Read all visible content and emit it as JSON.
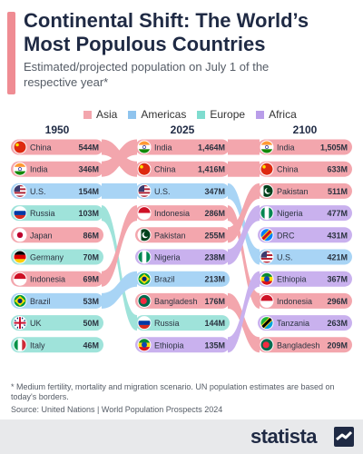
{
  "title": "Continental Shift: The World’s Most Populous Countries",
  "subtitle": "Estimated/projected population on July 1 of the respective year*",
  "footnote": "* Medium fertility, mortality and migration scenario. UN population estimates are based on today's borders.",
  "source": "Source: United Nations | World Population Prospects 2024",
  "brand": "statista",
  "colors": {
    "Asia": "#f3a6ad",
    "Americas": "#a8d4f5",
    "Europe": "#9fe3da",
    "Africa": "#c9b1ee"
  },
  "chart_data": {
    "type": "bump",
    "years": [
      "1950",
      "2025",
      "2100"
    ],
    "legend": [
      "Asia",
      "Americas",
      "Europe",
      "Africa"
    ],
    "columns": [
      {
        "year": "1950",
        "rows": [
          {
            "country": "China",
            "label": "544M",
            "value": 544,
            "continent": "Asia",
            "flag": "china"
          },
          {
            "country": "India",
            "label": "346M",
            "value": 346,
            "continent": "Asia",
            "flag": "india"
          },
          {
            "country": "U.S.",
            "label": "154M",
            "value": 154,
            "continent": "Americas",
            "flag": "us"
          },
          {
            "country": "Russia",
            "label": "103M",
            "value": 103,
            "continent": "Europe",
            "flag": "russia"
          },
          {
            "country": "Japan",
            "label": "86M",
            "value": 86,
            "continent": "Asia",
            "flag": "japan"
          },
          {
            "country": "Germany",
            "label": "70M",
            "value": 70,
            "continent": "Europe",
            "flag": "germany"
          },
          {
            "country": "Indonesia",
            "label": "69M",
            "value": 69,
            "continent": "Asia",
            "flag": "indonesia"
          },
          {
            "country": "Brazil",
            "label": "53M",
            "value": 53,
            "continent": "Americas",
            "flag": "brazil"
          },
          {
            "country": "UK",
            "label": "50M",
            "value": 50,
            "continent": "Europe",
            "flag": "uk"
          },
          {
            "country": "Italy",
            "label": "46M",
            "value": 46,
            "continent": "Europe",
            "flag": "italy"
          }
        ]
      },
      {
        "year": "2025",
        "rows": [
          {
            "country": "India",
            "label": "1,464M",
            "value": 1464,
            "continent": "Asia",
            "flag": "india"
          },
          {
            "country": "China",
            "label": "1,416M",
            "value": 1416,
            "continent": "Asia",
            "flag": "china"
          },
          {
            "country": "U.S.",
            "label": "347M",
            "value": 347,
            "continent": "Americas",
            "flag": "us"
          },
          {
            "country": "Indonesia",
            "label": "286M",
            "value": 286,
            "continent": "Asia",
            "flag": "indonesia"
          },
          {
            "country": "Pakistan",
            "label": "255M",
            "value": 255,
            "continent": "Asia",
            "flag": "pakistan"
          },
          {
            "country": "Nigeria",
            "label": "238M",
            "value": 238,
            "continent": "Africa",
            "flag": "nigeria"
          },
          {
            "country": "Brazil",
            "label": "213M",
            "value": 213,
            "continent": "Americas",
            "flag": "brazil"
          },
          {
            "country": "Bangladesh",
            "label": "176M",
            "value": 176,
            "continent": "Asia",
            "flag": "bangladesh"
          },
          {
            "country": "Russia",
            "label": "144M",
            "value": 144,
            "continent": "Europe",
            "flag": "russia"
          },
          {
            "country": "Ethiopia",
            "label": "135M",
            "value": 135,
            "continent": "Africa",
            "flag": "ethiopia"
          }
        ]
      },
      {
        "year": "2100",
        "rows": [
          {
            "country": "India",
            "label": "1,505M",
            "value": 1505,
            "continent": "Asia",
            "flag": "india"
          },
          {
            "country": "China",
            "label": "633M",
            "value": 633,
            "continent": "Asia",
            "flag": "china"
          },
          {
            "country": "Pakistan",
            "label": "511M",
            "value": 511,
            "continent": "Asia",
            "flag": "pakistan"
          },
          {
            "country": "Nigeria",
            "label": "477M",
            "value": 477,
            "continent": "Africa",
            "flag": "nigeria"
          },
          {
            "country": "DRC",
            "label": "431M",
            "value": 431,
            "continent": "Africa",
            "flag": "drc"
          },
          {
            "country": "U.S.",
            "label": "421M",
            "value": 421,
            "continent": "Americas",
            "flag": "us"
          },
          {
            "country": "Ethiopia",
            "label": "367M",
            "value": 367,
            "continent": "Africa",
            "flag": "ethiopia"
          },
          {
            "country": "Indonesia",
            "label": "296M",
            "value": 296,
            "continent": "Asia",
            "flag": "indonesia"
          },
          {
            "country": "Tanzania",
            "label": "263M",
            "value": 263,
            "continent": "Africa",
            "flag": "tanzania"
          },
          {
            "country": "Bangladesh",
            "label": "209M",
            "value": 209,
            "continent": "Asia",
            "flag": "bangladesh"
          }
        ]
      }
    ]
  }
}
